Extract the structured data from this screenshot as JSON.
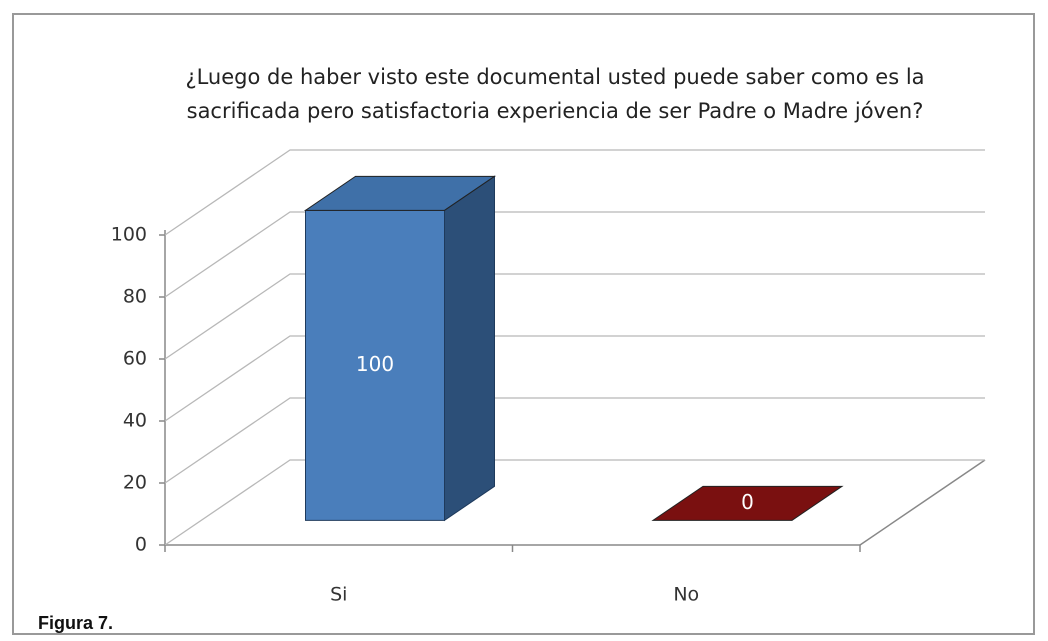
{
  "caption": "Figura 7.",
  "chart_data": {
    "type": "bar",
    "title": [
      "¿Luego de haber visto este documental usted puede saber como es la",
      "sacrificada pero satisfactoria experiencia de ser Padre o Madre jóven?"
    ],
    "categories": [
      "Si",
      "No"
    ],
    "values": [
      100,
      0
    ],
    "colors": [
      "#4a7ebb",
      "#7a1010"
    ],
    "ylim": [
      0,
      100
    ],
    "yticks": [
      0,
      20,
      40,
      60,
      80,
      100
    ],
    "grid": true
  }
}
